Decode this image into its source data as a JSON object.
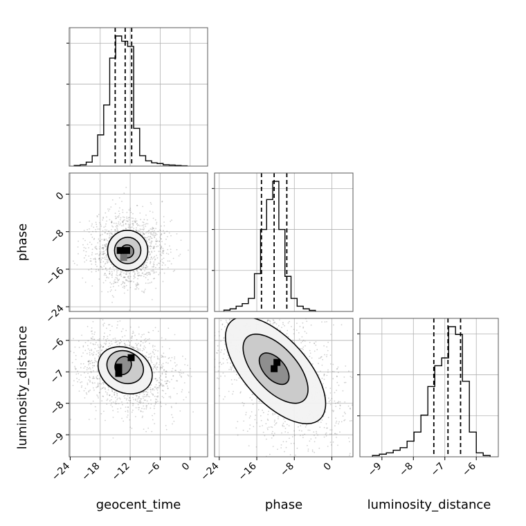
{
  "chart_data": {
    "type": "corner",
    "parameters": [
      "geocent_time",
      "phase",
      "luminosity_distance"
    ],
    "grid": true,
    "colors": {
      "hist": "#000000",
      "scatter": "#555555",
      "contour_fill": "#808080",
      "grid": "#b0b0b0"
    },
    "ranges": {
      "geocent_time": [
        -24.2,
        3.5
      ],
      "phase": [
        -25.0,
        4.5
      ],
      "luminosity_distance": [
        -9.7,
        -5.3
      ]
    },
    "ticks": {
      "geocent_time": {
        "values": [
          -24,
          -18,
          -12,
          -6,
          0
        ],
        "labels": [
          "−24",
          "−18",
          "−12",
          "−6",
          "0"
        ]
      },
      "phase": {
        "values": [
          -24,
          -16,
          -8,
          0
        ],
        "labels": [
          "−24",
          "−16",
          "−8",
          "0"
        ]
      },
      "luminosity_distance": {
        "values": [
          -9,
          -8,
          -7,
          -6
        ],
        "labels": [
          "−9",
          "−8",
          "−7",
          "−6"
        ]
      }
    },
    "diagonal_histograms": {
      "geocent_time": {
        "quantiles": [
          -15.0,
          -13.0,
          -11.7
        ],
        "bins": [
          {
            "x0": -23.2,
            "x1": -22.0,
            "count": 0.005
          },
          {
            "x0": -22.0,
            "x1": -20.8,
            "count": 0.01
          },
          {
            "x0": -20.8,
            "x1": -19.6,
            "count": 0.03
          },
          {
            "x0": -19.6,
            "x1": -18.5,
            "count": 0.08
          },
          {
            "x0": -18.5,
            "x1": -17.3,
            "count": 0.24
          },
          {
            "x0": -17.3,
            "x1": -16.1,
            "count": 0.47
          },
          {
            "x0": -16.1,
            "x1": -14.9,
            "count": 0.83
          },
          {
            "x0": -14.9,
            "x1": -13.7,
            "count": 1.0
          },
          {
            "x0": -13.7,
            "x1": -12.5,
            "count": 0.96
          },
          {
            "x0": -12.5,
            "x1": -11.3,
            "count": 0.92
          },
          {
            "x0": -11.3,
            "x1": -10.1,
            "count": 0.29
          },
          {
            "x0": -10.1,
            "x1": -8.9,
            "count": 0.08
          },
          {
            "x0": -8.9,
            "x1": -7.7,
            "count": 0.04
          },
          {
            "x0": -7.7,
            "x1": -6.6,
            "count": 0.025
          },
          {
            "x0": -6.6,
            "x1": -5.4,
            "count": 0.02
          },
          {
            "x0": -5.4,
            "x1": -4.2,
            "count": 0.01
          },
          {
            "x0": -4.2,
            "x1": -3.0,
            "count": 0.008
          },
          {
            "x0": -3.0,
            "x1": -1.8,
            "count": 0.005
          },
          {
            "x0": -1.8,
            "x1": -0.6,
            "count": 0.002
          }
        ]
      },
      "phase": {
        "quantiles": [
          -15.0,
          -12.3,
          -9.6
        ],
        "bins": [
          {
            "x0": -23.0,
            "x1": -21.7,
            "count": 0.01
          },
          {
            "x0": -21.7,
            "x1": -20.4,
            "count": 0.02
          },
          {
            "x0": -20.4,
            "x1": -19.1,
            "count": 0.04
          },
          {
            "x0": -19.1,
            "x1": -17.8,
            "count": 0.06
          },
          {
            "x0": -17.8,
            "x1": -16.5,
            "count": 0.1
          },
          {
            "x0": -16.5,
            "x1": -15.2,
            "count": 0.29
          },
          {
            "x0": -15.2,
            "x1": -13.9,
            "count": 0.63
          },
          {
            "x0": -13.9,
            "x1": -12.6,
            "count": 0.86
          },
          {
            "x0": -12.6,
            "x1": -11.3,
            "count": 1.0
          },
          {
            "x0": -11.3,
            "x1": -10.0,
            "count": 0.63
          },
          {
            "x0": -10.0,
            "x1": -8.7,
            "count": 0.27
          },
          {
            "x0": -8.7,
            "x1": -7.4,
            "count": 0.1
          },
          {
            "x0": -7.4,
            "x1": -6.1,
            "count": 0.04
          },
          {
            "x0": -6.1,
            "x1": -4.8,
            "count": 0.02
          },
          {
            "x0": -4.8,
            "x1": -3.5,
            "count": 0.008
          }
        ]
      },
      "luminosity_distance": {
        "quantiles": [
          -7.35,
          -6.9,
          -6.5
        ],
        "bins": [
          {
            "x0": -9.3,
            "x1": -9.08,
            "count": 0.01
          },
          {
            "x0": -9.08,
            "x1": -8.86,
            "count": 0.02
          },
          {
            "x0": -8.86,
            "x1": -8.64,
            "count": 0.03
          },
          {
            "x0": -8.64,
            "x1": -8.42,
            "count": 0.05
          },
          {
            "x0": -8.42,
            "x1": -8.2,
            "count": 0.07
          },
          {
            "x0": -8.2,
            "x1": -7.98,
            "count": 0.12
          },
          {
            "x0": -7.98,
            "x1": -7.76,
            "count": 0.19
          },
          {
            "x0": -7.76,
            "x1": -7.54,
            "count": 0.32
          },
          {
            "x0": -7.54,
            "x1": -7.32,
            "count": 0.54
          },
          {
            "x0": -7.32,
            "x1": -7.1,
            "count": 0.7
          },
          {
            "x0": -7.1,
            "x1": -6.88,
            "count": 0.76
          },
          {
            "x0": -6.88,
            "x1": -6.66,
            "count": 1.0
          },
          {
            "x0": -6.66,
            "x1": -6.44,
            "count": 0.94
          },
          {
            "x0": -6.44,
            "x1": -6.22,
            "count": 0.58
          },
          {
            "x0": -6.22,
            "x1": -6.0,
            "count": 0.19
          },
          {
            "x0": -6.0,
            "x1": -5.78,
            "count": 0.03
          },
          {
            "x0": -5.78,
            "x1": -5.56,
            "count": 0.01
          }
        ]
      }
    },
    "pairs": [
      {
        "x": "geocent_time",
        "y": "phase",
        "center": [
          -12.5,
          -12.0
        ],
        "contours": [
          {
            "level": "outer",
            "center": [
              -12.5,
              -12.0
            ],
            "semi_axes": [
              8.0,
              8.6
            ],
            "angle_deg": 45
          },
          {
            "level": "middle",
            "center": [
              -12.5,
              -12.0
            ],
            "semi_axes": [
              5.3,
              5.6
            ],
            "angle_deg": 45
          },
          {
            "level": "inner",
            "center": [
              -12.6,
              -12.2
            ],
            "semi_axes": [
              2.6,
              2.8
            ],
            "angle_deg": 45
          }
        ],
        "dense_cells": [
          {
            "x": -14.0,
            "y": -12.0,
            "shade": 0.0
          },
          {
            "x": -12.7,
            "y": -12.0,
            "shade": 0.0
          },
          {
            "x": -13.3,
            "y": -13.5,
            "shade": 0.45
          }
        ]
      },
      {
        "x": "geocent_time",
        "y": "luminosity_distance",
        "center": [
          -13.3,
          -6.95
        ],
        "contours": [
          {
            "level": "outer",
            "center": [
              -13.0,
              -6.95
            ],
            "semi_axes": [
              8.8,
              1.8
            ],
            "angle_deg": 62
          },
          {
            "level": "middle",
            "center": [
              -13.0,
              -6.85
            ],
            "semi_axes": [
              6.3,
              1.2
            ],
            "angle_deg": 62
          },
          {
            "level": "inner",
            "center": [
              -13.4,
              -6.8
            ],
            "semi_axes": [
              3.8,
              0.5
            ],
            "angle_deg": 62
          }
        ],
        "dense_cells": [
          {
            "x": -11.8,
            "y": -6.55,
            "shade": 0.0
          },
          {
            "x": -14.3,
            "y": -6.85,
            "shade": 0.0
          },
          {
            "x": -14.3,
            "y": -7.05,
            "shade": 0.0
          }
        ]
      },
      {
        "x": "phase",
        "y": "luminosity_distance",
        "center": [
          -12.0,
          -6.95
        ],
        "contours": [
          {
            "level": "outer",
            "center": [
              -12.0,
              -6.95
            ],
            "semi_axes": [
              13.5,
              4.2
            ],
            "angle_deg": 42
          },
          {
            "level": "middle",
            "center": [
              -12.0,
              -6.9
            ],
            "semi_axes": [
              9.0,
              2.7
            ],
            "angle_deg": 42
          },
          {
            "level": "inner",
            "center": [
              -12.3,
              -6.9
            ],
            "semi_axes": [
              4.5,
              1.2
            ],
            "angle_deg": 42
          }
        ],
        "dense_cells": [
          {
            "x": -11.7,
            "y": -6.7,
            "shade": 0.0
          },
          {
            "x": -12.3,
            "y": -6.9,
            "shade": 0.0
          }
        ]
      }
    ]
  }
}
